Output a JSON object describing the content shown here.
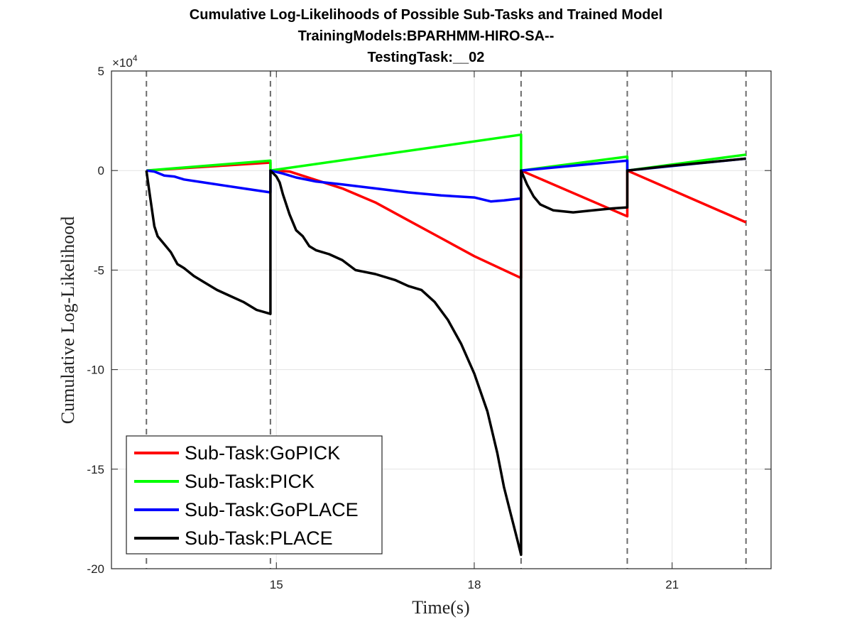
{
  "chart_data": {
    "type": "line",
    "title": [
      "Cumulative Log-Likelihoods of Possible Sub-Tasks and Trained Model",
      "TrainingModels:BPARHMM-HIRO-SA--",
      "TestingTask:__02"
    ],
    "xlabel": "Time(s)",
    "ylabel": "Cumulative Log-Likelihood",
    "y_exponent_label": "×10",
    "y_exponent_power": "4",
    "xlim": [
      12.5,
      22.5
    ],
    "ylim": [
      -20,
      5
    ],
    "xticks": [
      15,
      18,
      21
    ],
    "xtick_labels": [
      "15",
      "18",
      "21"
    ],
    "yticks": [
      5,
      0,
      -5,
      -10,
      -15,
      -20
    ],
    "ytick_labels": [
      "5",
      "0",
      "-5",
      "-10",
      "-15",
      "-20"
    ],
    "grid": true,
    "legend_position": "bottom-left",
    "boundaries": [
      13.03,
      14.91,
      18.71,
      20.32,
      22.12
    ],
    "series": [
      {
        "name": "Sub-Task:GoPICK",
        "color": "#ff0000",
        "points": [
          [
            13.03,
            0.0
          ],
          [
            14.91,
            0.4
          ],
          [
            14.91,
            0.0
          ],
          [
            15.0,
            0.0
          ],
          [
            15.2,
            -0.05
          ],
          [
            16.0,
            -0.9
          ],
          [
            16.5,
            -1.6
          ],
          [
            17.0,
            -2.5
          ],
          [
            17.5,
            -3.4
          ],
          [
            18.0,
            -4.3
          ],
          [
            18.71,
            -5.4
          ],
          [
            18.71,
            0.0
          ],
          [
            20.32,
            -2.3
          ],
          [
            20.32,
            0.0
          ],
          [
            22.12,
            -2.6
          ]
        ]
      },
      {
        "name": "Sub-Task:PICK",
        "color": "#00ff00",
        "points": [
          [
            13.03,
            0.0
          ],
          [
            14.91,
            0.5
          ],
          [
            14.91,
            0.0
          ],
          [
            18.71,
            1.8
          ],
          [
            18.71,
            0.0
          ],
          [
            20.32,
            0.7
          ],
          [
            20.32,
            0.0
          ],
          [
            22.12,
            0.8
          ]
        ]
      },
      {
        "name": "Sub-Task:GoPLACE",
        "color": "#0000ff",
        "points": [
          [
            13.03,
            0.0
          ],
          [
            13.15,
            -0.05
          ],
          [
            13.3,
            -0.25
          ],
          [
            13.45,
            -0.3
          ],
          [
            13.6,
            -0.45
          ],
          [
            13.9,
            -0.6
          ],
          [
            14.2,
            -0.75
          ],
          [
            14.5,
            -0.9
          ],
          [
            14.91,
            -1.1
          ],
          [
            14.91,
            0.0
          ],
          [
            15.1,
            -0.15
          ],
          [
            15.3,
            -0.35
          ],
          [
            15.6,
            -0.55
          ],
          [
            16.0,
            -0.7
          ],
          [
            16.5,
            -0.9
          ],
          [
            17.0,
            -1.1
          ],
          [
            17.5,
            -1.25
          ],
          [
            18.0,
            -1.35
          ],
          [
            18.25,
            -1.55
          ],
          [
            18.45,
            -1.5
          ],
          [
            18.71,
            -1.4
          ],
          [
            18.71,
            0.0
          ],
          [
            20.32,
            0.5
          ],
          [
            20.32,
            0.0
          ],
          [
            22.12,
            0.6
          ]
        ]
      },
      {
        "name": "Sub-Task:PLACE",
        "color": "#000000",
        "points": [
          [
            13.03,
            0.0
          ],
          [
            13.08,
            -1.2
          ],
          [
            13.15,
            -2.8
          ],
          [
            13.2,
            -3.3
          ],
          [
            13.3,
            -3.7
          ],
          [
            13.4,
            -4.1
          ],
          [
            13.5,
            -4.7
          ],
          [
            13.6,
            -4.9
          ],
          [
            13.75,
            -5.3
          ],
          [
            13.9,
            -5.6
          ],
          [
            14.1,
            -6.0
          ],
          [
            14.3,
            -6.3
          ],
          [
            14.5,
            -6.6
          ],
          [
            14.7,
            -7.0
          ],
          [
            14.91,
            -7.2
          ],
          [
            14.91,
            0.0
          ],
          [
            15.0,
            -0.3
          ],
          [
            15.05,
            -0.6
          ],
          [
            15.1,
            -1.2
          ],
          [
            15.2,
            -2.2
          ],
          [
            15.3,
            -3.0
          ],
          [
            15.4,
            -3.3
          ],
          [
            15.5,
            -3.8
          ],
          [
            15.6,
            -4.0
          ],
          [
            15.8,
            -4.2
          ],
          [
            16.0,
            -4.5
          ],
          [
            16.2,
            -5.0
          ],
          [
            16.5,
            -5.2
          ],
          [
            16.8,
            -5.5
          ],
          [
            17.0,
            -5.8
          ],
          [
            17.2,
            -6.0
          ],
          [
            17.4,
            -6.6
          ],
          [
            17.6,
            -7.5
          ],
          [
            17.8,
            -8.7
          ],
          [
            18.0,
            -10.2
          ],
          [
            18.2,
            -12.1
          ],
          [
            18.35,
            -14.2
          ],
          [
            18.45,
            -15.9
          ],
          [
            18.55,
            -17.2
          ],
          [
            18.65,
            -18.5
          ],
          [
            18.71,
            -19.3
          ],
          [
            18.71,
            0.0
          ],
          [
            18.8,
            -0.7
          ],
          [
            18.9,
            -1.3
          ],
          [
            19.0,
            -1.7
          ],
          [
            19.2,
            -2.0
          ],
          [
            19.5,
            -2.1
          ],
          [
            19.8,
            -2.0
          ],
          [
            20.1,
            -1.9
          ],
          [
            20.32,
            -1.85
          ],
          [
            20.32,
            0.0
          ],
          [
            21.0,
            0.25
          ],
          [
            21.5,
            0.4
          ],
          [
            22.12,
            0.6
          ]
        ]
      }
    ]
  }
}
